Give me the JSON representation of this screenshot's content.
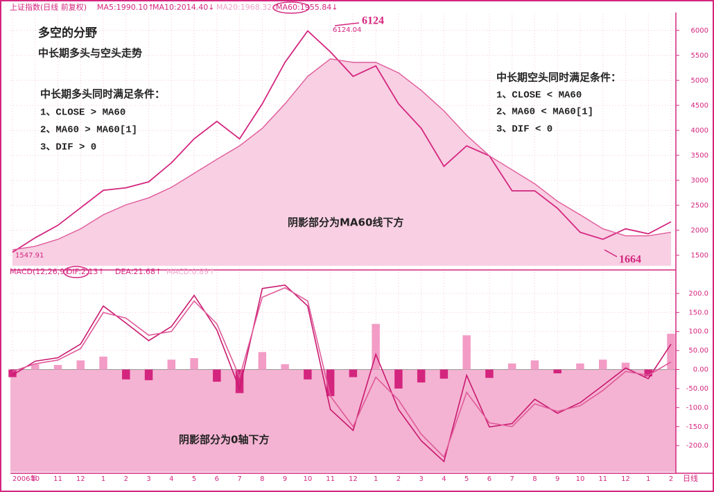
{
  "chart_data": [
    {
      "type": "line",
      "header": [
        "上证指数(日线 前复权)",
        "MA5:1990.10↑",
        "MA10:2014.40↓",
        "MA20:1968.32↑",
        "MA60:1955.84↓"
      ],
      "annotations": [
        "多空的分野",
        "中长期多头与空头走势",
        "中长期多头同时满足条件：",
        "1、CLOSE > MA60",
        "2、MA60 > MA60[1]",
        "3、DIF > 0",
        "中长期空头同时满足条件：",
        "1、CLOSE < MA60",
        "2、MA60 < MA60[1]",
        "3、DIF < 0",
        "阴影部分为MA60线下方",
        "6124",
        "6124.04",
        "1664",
        "1547.91"
      ],
      "categories": [
        "2006年",
        "10",
        "11",
        "12",
        "1",
        "2",
        "3",
        "4",
        "5",
        "6",
        "7",
        "8",
        "9",
        "10",
        "11",
        "12",
        "1",
        "2",
        "3",
        "4",
        "5",
        "6",
        "7",
        "8",
        "9",
        "10",
        "11",
        "12",
        "1",
        "2"
      ],
      "series": [
        {
          "color": "#d4257e",
          "values": [
            1560,
            1850,
            2100,
            2450,
            2800,
            2850,
            2970,
            3350,
            3830,
            4180,
            3830,
            4530,
            5360,
            5990,
            5570,
            5080,
            5290,
            4530,
            4040,
            3280,
            3690,
            3490,
            2790,
            2790,
            2440,
            1960,
            1820,
            2030,
            1930,
            2170
          ]
        },
        {
          "color": "#e05a9a",
          "fill": "#f8cfe3",
          "values": [
            1610,
            1680,
            1820,
            2030,
            2310,
            2510,
            2650,
            2860,
            3140,
            3420,
            3690,
            4040,
            4530,
            5080,
            5430,
            5360,
            5360,
            5150,
            4800,
            4390,
            3900,
            3490,
            3210,
            2930,
            2580,
            2310,
            2030,
            1890,
            1890,
            1960
          ]
        }
      ],
      "ylim": [
        1290,
        6330
      ],
      "yticks": [
        1500,
        2000,
        2500,
        3000,
        3500,
        4000,
        4500,
        5000,
        5500,
        6000
      ],
      "grid": true
    },
    {
      "type": "macd",
      "header": [
        "MACD(12,26,9)",
        "DIF:2.13↑",
        "DEA:21.68↑",
        "MACD:0.89↑"
      ],
      "annotations": [
        "阴影部分为0轴下方"
      ],
      "x_label": "日线",
      "fill": "#f4b3d2",
      "series": [
        {
          "color": "#c8186e",
          "values": [
            -15,
            22,
            31,
            67,
            167,
            122,
            76,
            113,
            195,
            104,
            -51,
            213,
            222,
            167,
            -105,
            -160,
            40,
            -105,
            -187,
            -242,
            -15,
            -151,
            -142,
            -78,
            -115,
            -87,
            -42,
            4,
            -24,
            67
          ]
        },
        {
          "color": "#e05a9a",
          "values": [
            -5,
            15,
            25,
            55,
            150,
            135,
            90,
            100,
            180,
            120,
            -20,
            190,
            215,
            180,
            -70,
            -150,
            -20,
            -80,
            -170,
            -230,
            -60,
            -140,
            -150,
            -90,
            -110,
            -95,
            -55,
            -5,
            -15,
            20
          ]
        }
      ],
      "bars": {
        "up_color": "#f29cc6",
        "down_color": "#d4257e",
        "values": [
          -20,
          14,
          12,
          24,
          34,
          -26,
          -28,
          26,
          30,
          -32,
          -62,
          46,
          14,
          -26,
          -70,
          -20,
          120,
          -50,
          -34,
          -24,
          90,
          -22,
          16,
          24,
          -10,
          16,
          26,
          18,
          -18,
          94
        ]
      },
      "ylim": [
        -269,
        249
      ],
      "yticks": [
        {
          "value": 200,
          "label": "200.0"
        },
        {
          "value": 150,
          "label": "150.0"
        },
        {
          "value": 100,
          "label": "100.0"
        },
        {
          "value": 50,
          "label": "50.00"
        },
        {
          "value": 0,
          "label": "0.00"
        },
        {
          "value": -50,
          "label": "-50.00"
        },
        {
          "value": -100,
          "label": "-100.0"
        },
        {
          "value": -150,
          "label": "-150.0"
        },
        {
          "value": -200,
          "label": "-200.0"
        }
      ],
      "grid": true
    }
  ]
}
